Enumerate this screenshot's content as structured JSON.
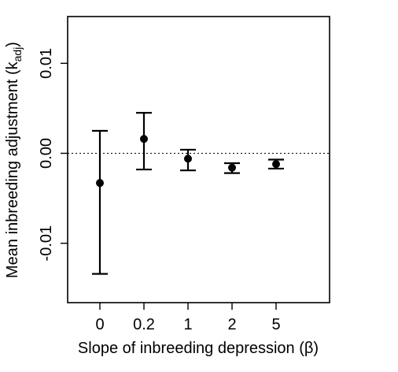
{
  "chart_data": {
    "type": "scatter",
    "title": "",
    "xlabel": "Slope of inbreeding depression (β)",
    "ylabel_main": "Mean inbreeding adjustment (k",
    "ylabel_sub": "adj",
    "ylabel_close": ")",
    "categories": [
      "0",
      "0.2",
      "1",
      "2",
      "5"
    ],
    "points": [
      {
        "x": "0",
        "mean": -0.0033,
        "lower": -0.0134,
        "upper": 0.0025
      },
      {
        "x": "0.2",
        "mean": 0.0016,
        "lower": -0.0018,
        "upper": 0.0045
      },
      {
        "x": "1",
        "mean": -0.0006,
        "lower": -0.0019,
        "upper": 0.0004
      },
      {
        "x": "2",
        "mean": -0.0016,
        "lower": -0.0022,
        "upper": -0.0011
      },
      {
        "x": "5",
        "mean": -0.0012,
        "lower": -0.0017,
        "upper": -0.0007
      }
    ],
    "yticks": [
      "-0.01",
      "0.00",
      "0.01"
    ],
    "ytick_values": [
      -0.01,
      0.0,
      0.01
    ],
    "ylim": [
      -0.0166,
      0.0152
    ],
    "reference_line": 0,
    "reference_style": "dotted",
    "grid": false,
    "legend": "none"
  }
}
